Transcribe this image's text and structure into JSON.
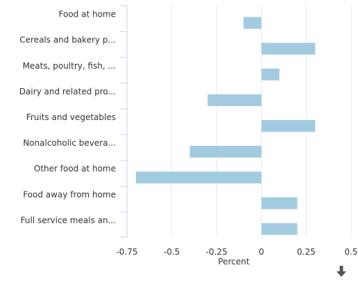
{
  "chart_data": {
    "type": "bar",
    "orientation": "horizontal",
    "categories": [
      "Food at home",
      "Cereals and bakery p...",
      "Meats, poultry, fish, ...",
      "Dairy and related pro...",
      "Fruits and vegetables",
      "Nonalcoholic bevera...",
      "Other food at home",
      "Food away from home",
      "Full service meals an..."
    ],
    "values": [
      -0.1,
      0.3,
      0.1,
      -0.3,
      0.3,
      -0.4,
      -0.7,
      0.2,
      0.2
    ],
    "xlabel": "Percent",
    "ylabel": "",
    "xlim": [
      -0.75,
      0.5
    ],
    "x_ticks": [
      "-0.75",
      "-0.5",
      "-0.25",
      "0",
      "0.25",
      "0.5"
    ],
    "x_tick_values": [
      -0.75,
      -0.5,
      -0.25,
      0,
      0.25,
      0.5
    ],
    "grid": true,
    "bar_color": "#a3cbe0",
    "grid_color": "#e3e8f0",
    "axis_color": "#c9d3e3",
    "legend": "none"
  },
  "toolbar": {
    "download_icon": "download-arrow-icon",
    "icon_color": "#555555"
  }
}
